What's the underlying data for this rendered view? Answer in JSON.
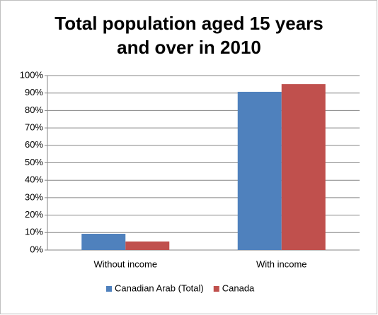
{
  "chart_data": {
    "type": "bar",
    "title": "Total population aged 15 years and over in 2010",
    "categories": [
      "Without income",
      "With income"
    ],
    "series": [
      {
        "name": "Canadian Arab (Total)",
        "color": "#4f81bd",
        "values": [
          9.3,
          90.7
        ]
      },
      {
        "name": "Canada",
        "color": "#c0504d",
        "values": [
          4.9,
          95.1
        ]
      }
    ],
    "ylim": [
      0,
      100
    ],
    "yticks": [
      {
        "value": 0,
        "label": "0%"
      },
      {
        "value": 10,
        "label": "10%"
      },
      {
        "value": 20,
        "label": "20%"
      },
      {
        "value": 30,
        "label": "30%"
      },
      {
        "value": 40,
        "label": "40%"
      },
      {
        "value": 50,
        "label": "50%"
      },
      {
        "value": 60,
        "label": "60%"
      },
      {
        "value": 70,
        "label": "70%"
      },
      {
        "value": 80,
        "label": "80%"
      },
      {
        "value": 90,
        "label": "90%"
      },
      {
        "value": 100,
        "label": "100%"
      }
    ],
    "grid": true,
    "legend": "bottom"
  }
}
